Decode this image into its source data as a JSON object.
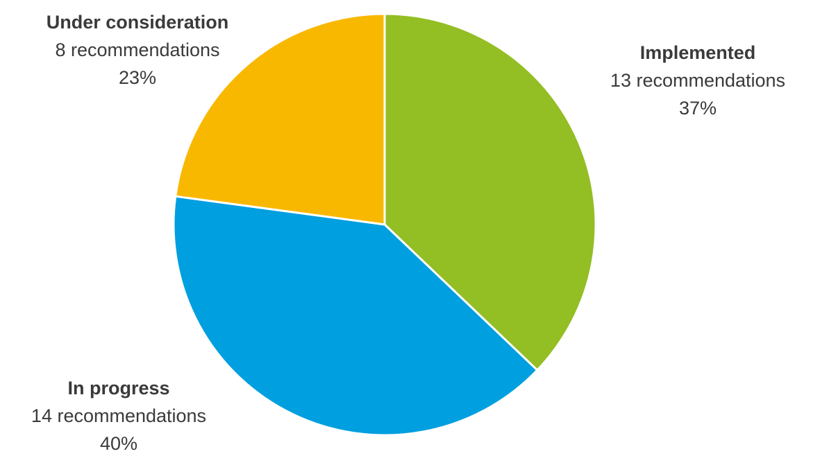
{
  "chart_data": {
    "type": "pie",
    "title": "",
    "start_angle_deg": 0,
    "direction": "clockwise",
    "slices": [
      {
        "name": "Implemented",
        "value": 13,
        "count_label": "13 recommendations",
        "percent_label": "37%",
        "color": "#93be24"
      },
      {
        "name": "In progress",
        "value": 14,
        "count_label": "14 recommendations",
        "percent_label": "40%",
        "color": "#009fdf"
      },
      {
        "name": "Under consideration",
        "value": 8,
        "count_label": "8 recommendations",
        "percent_label": "23%",
        "color": "#f9b800"
      }
    ],
    "slice_border_color": "#ffffff"
  }
}
